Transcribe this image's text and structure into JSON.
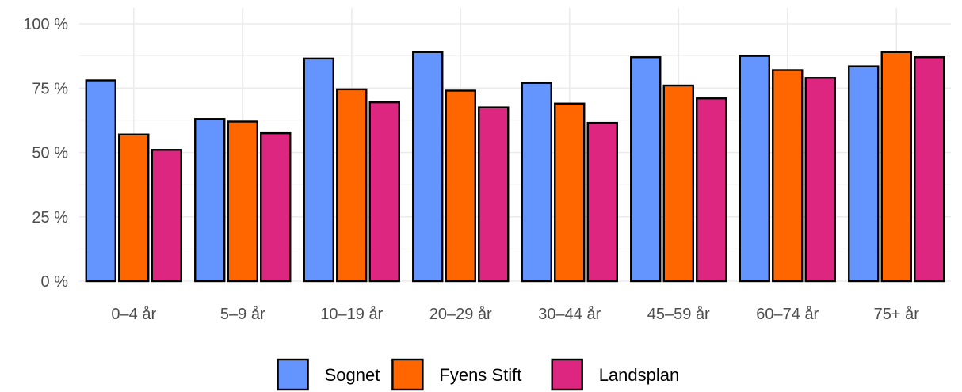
{
  "chart_data": {
    "type": "bar",
    "categories": [
      "0–4 år",
      "5–9 år",
      "10–19 år",
      "20–29 år",
      "30–44 år",
      "45–59 år",
      "60–74 år",
      "75+ år"
    ],
    "series": [
      {
        "name": "Sognet",
        "color": "#6495ff",
        "values": [
          78,
          63,
          86.5,
          89,
          77,
          87,
          87.5,
          83.5
        ]
      },
      {
        "name": "Fyens Stift",
        "color": "#ff6600",
        "values": [
          57,
          62,
          74.5,
          74,
          69,
          76,
          82,
          89
        ]
      },
      {
        "name": "Landsplan",
        "color": "#dc267f",
        "values": [
          51,
          57.5,
          69.5,
          67.5,
          61.5,
          71,
          79,
          87
        ]
      }
    ],
    "yticks": [
      0,
      25,
      50,
      75,
      100
    ],
    "ytick_labels": [
      "0 %",
      "25 %",
      "50 %",
      "75 %",
      "100 %"
    ],
    "ylim": [
      0,
      100
    ],
    "grid": true,
    "legend_position": "bottom",
    "title": "",
    "xlabel": "",
    "ylabel": ""
  }
}
